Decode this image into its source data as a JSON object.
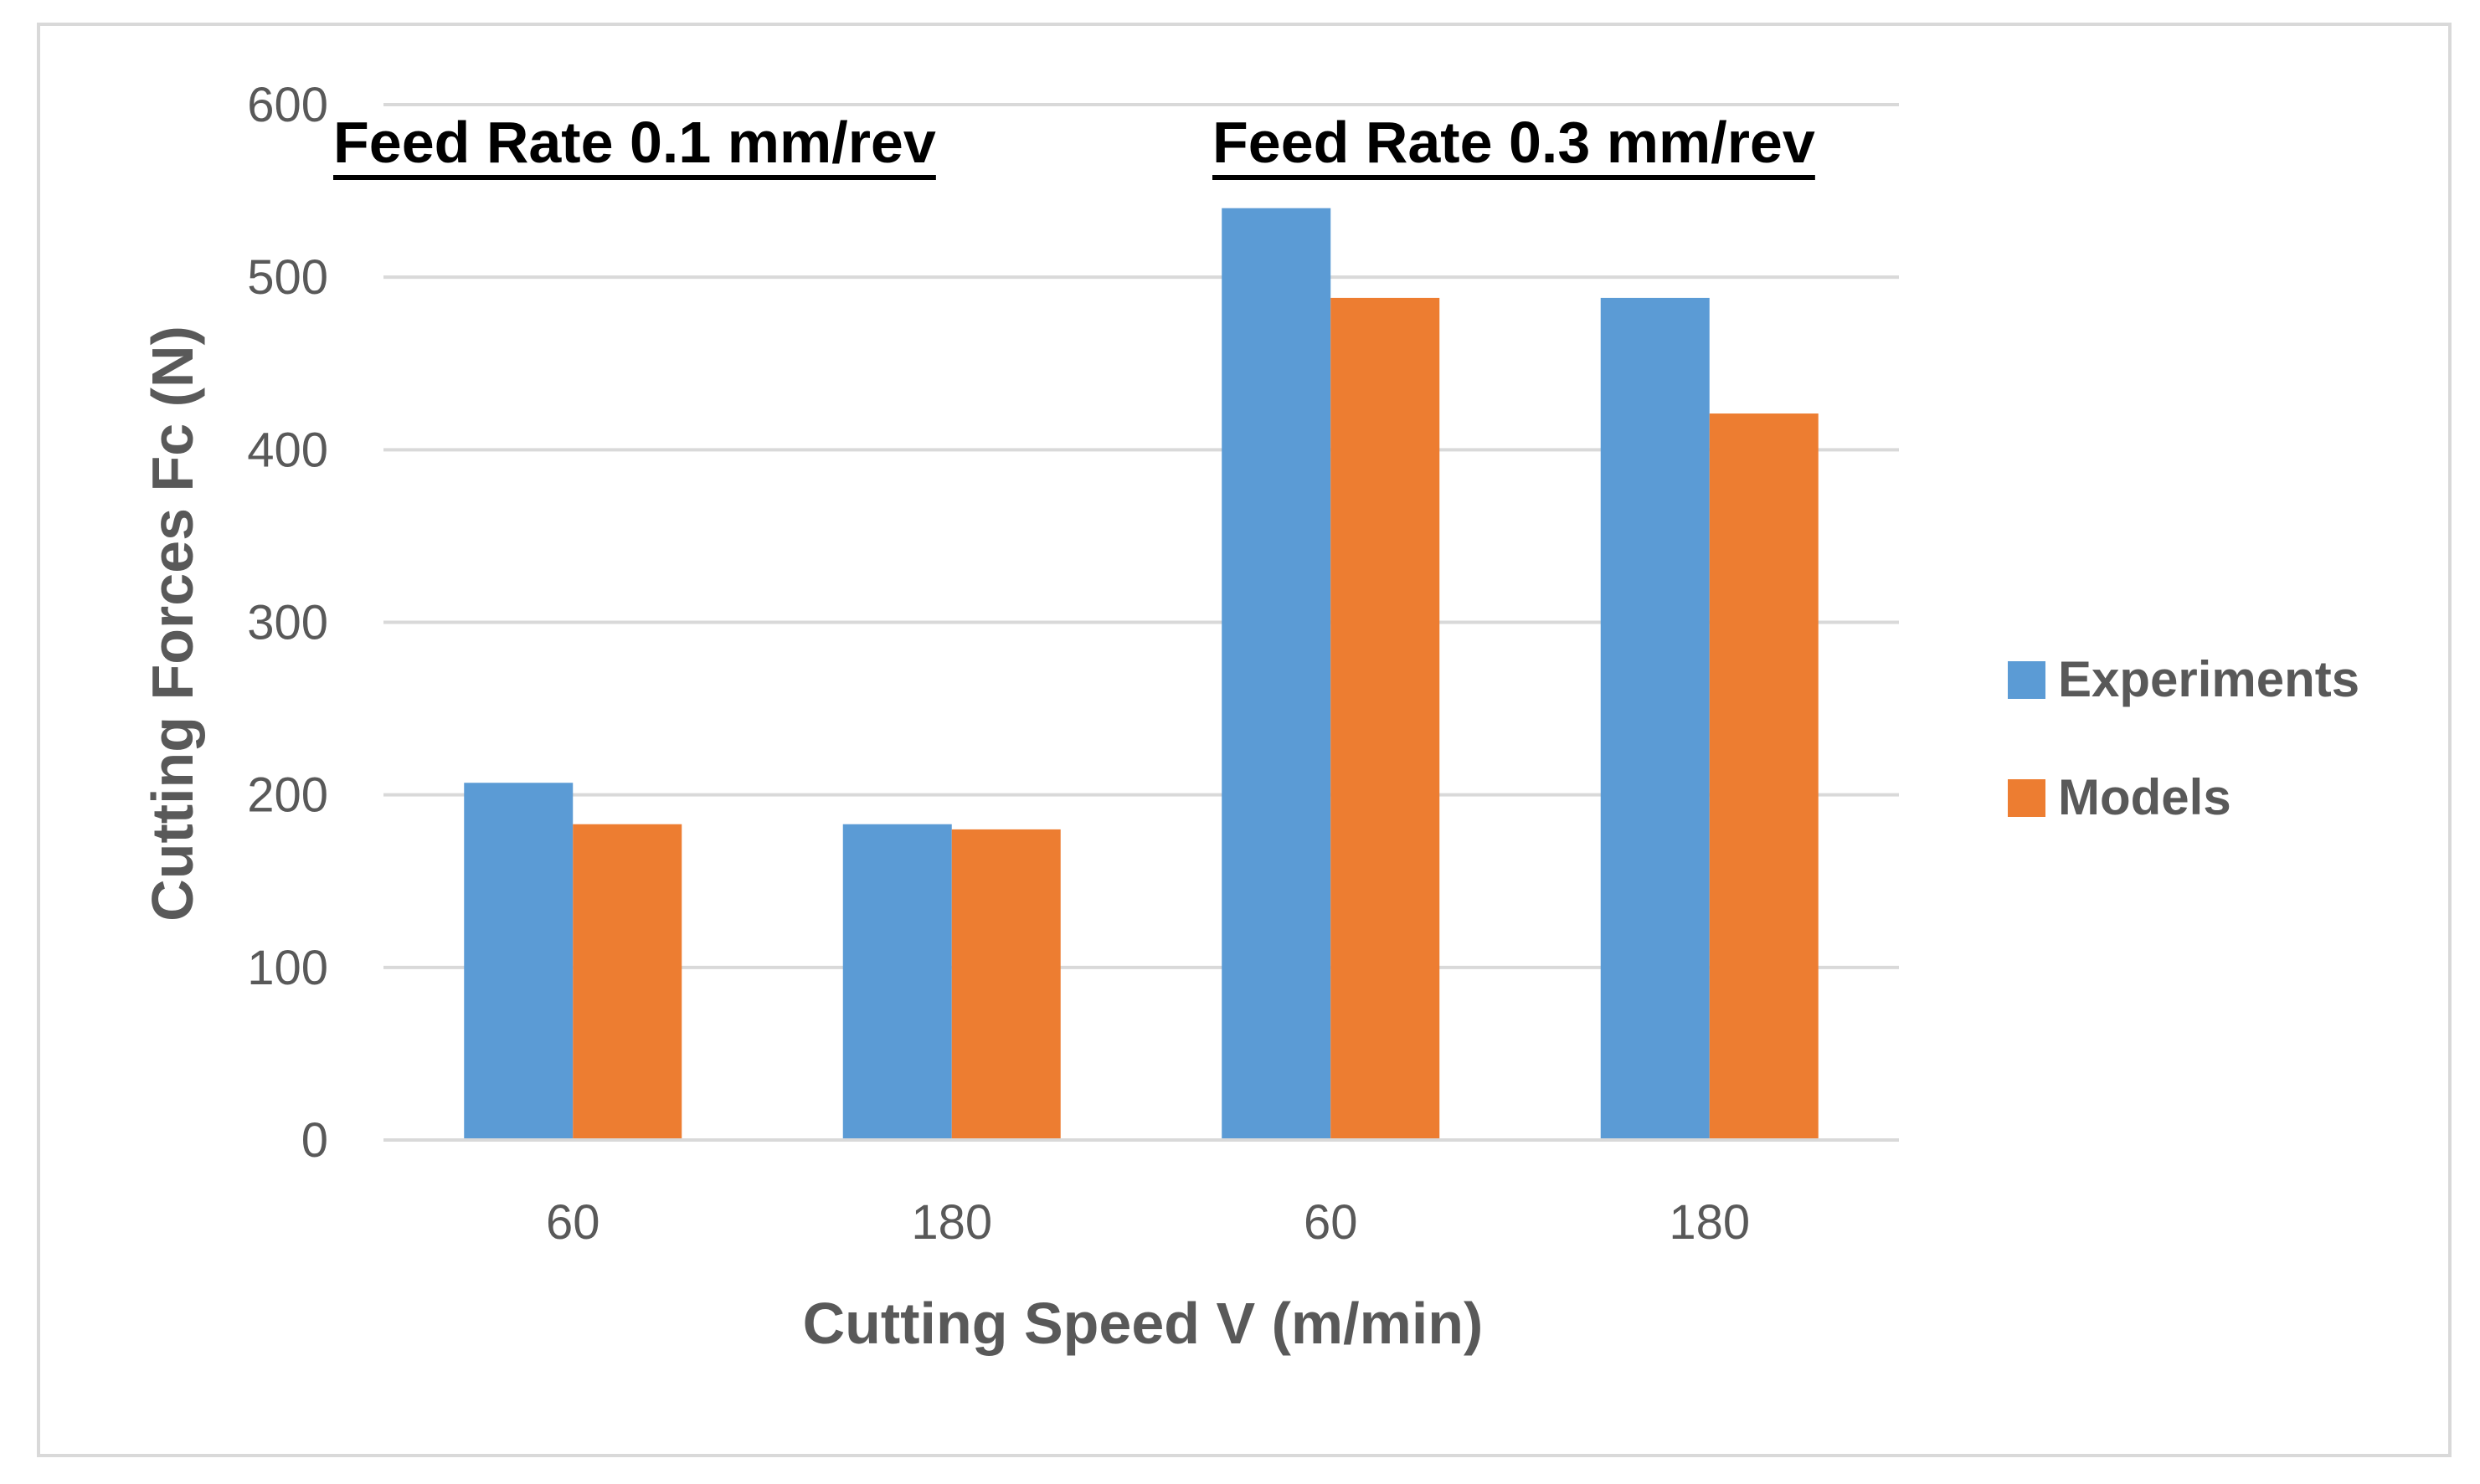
{
  "chart_data": {
    "type": "bar",
    "categories": [
      "60",
      "180",
      "60",
      "180"
    ],
    "series": [
      {
        "name": "Experiments",
        "values": [
          207,
          183,
          540,
          488
        ],
        "color": "#5B9BD5"
      },
      {
        "name": "Models",
        "values": [
          183,
          180,
          488,
          421
        ],
        "color": "#ED7D31"
      }
    ],
    "group_labels": [
      "Feed Rate 0.1 mm/rev",
      "Feed Rate 0.3 mm/rev"
    ],
    "xlabel": "Cutting Speed V (m/min)",
    "ylabel": "Cutting Forces Fc (N)",
    "ylim": [
      0,
      600
    ],
    "yticks": [
      0,
      100,
      200,
      300,
      400,
      500,
      600
    ],
    "grid": true,
    "legend_position": "right"
  },
  "colors": {
    "gridline": "#D9D9D9",
    "frame": "#D9D9D9",
    "text": "#595959"
  }
}
